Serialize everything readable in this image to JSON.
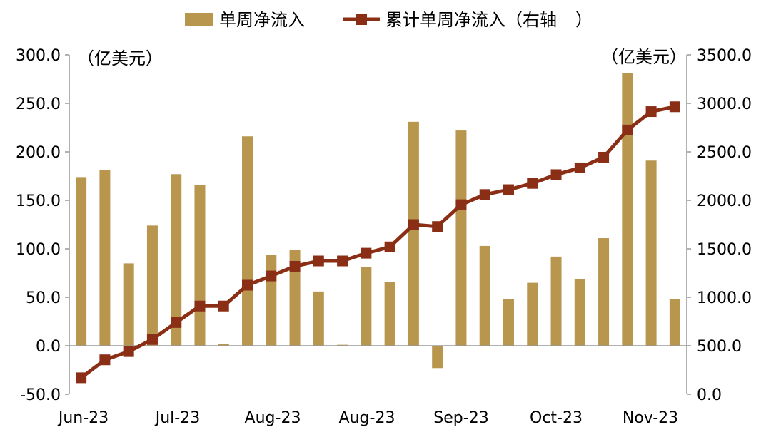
{
  "chart_data": {
    "type": "bar+line",
    "legend": {
      "bar_label": "单周净流入",
      "line_label": "累计单周净流入（右轴",
      "placement": "top-center"
    },
    "left_axis": {
      "unit": "（亿美元）",
      "range": [
        -50,
        300
      ],
      "ticks": [
        "300.0",
        "250.0",
        "200.0",
        "150.0",
        "100.0",
        "50.0",
        "0.0",
        "-50.0"
      ]
    },
    "right_axis": {
      "unit": "（亿美元）",
      "range": [
        0,
        3500
      ],
      "ticks": [
        "3500.0",
        "3000.0",
        "2500.0",
        "2000.0",
        "1500.0",
        "1000.0",
        "500.0",
        "0.0"
      ]
    },
    "x_tick_labels": [
      "Jun-23",
      "Jul-23",
      "Aug-23",
      "Aug-23",
      "Sep-23",
      "Oct-23",
      "Nov-23"
    ],
    "bar_values": [
      174,
      181,
      85,
      124,
      177,
      166,
      2,
      216,
      94,
      99,
      56,
      1,
      81,
      66,
      231,
      -23,
      222,
      103,
      48,
      65,
      92,
      69,
      111,
      281,
      191,
      48
    ],
    "line_values": [
      170,
      355,
      440,
      565,
      740,
      910,
      910,
      1125,
      1220,
      1320,
      1375,
      1375,
      1455,
      1520,
      1750,
      1730,
      1955,
      2060,
      2110,
      2175,
      2265,
      2335,
      2445,
      2725,
      2915,
      2965
    ],
    "colors": {
      "bar": "#B8964E",
      "line": "#8B2E16",
      "axis": "#999999"
    },
    "grid": false
  }
}
